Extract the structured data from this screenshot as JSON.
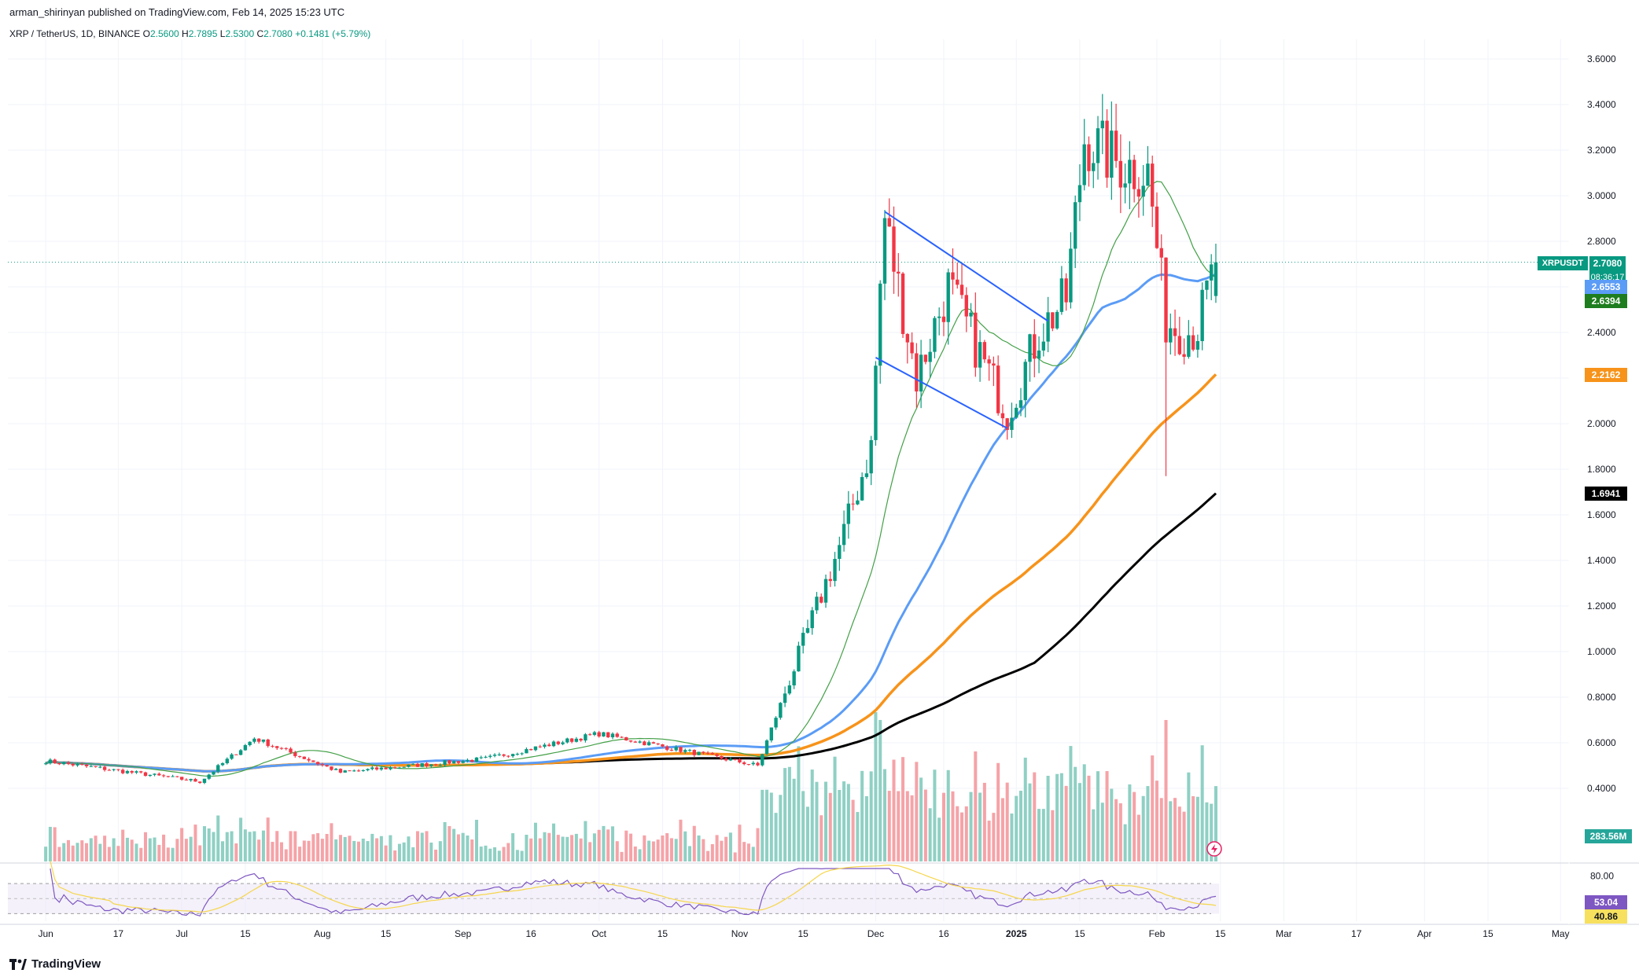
{
  "header": {
    "published": "arman_shirinyan published on TradingView.com, Feb 14, 2025 15:23 UTC",
    "symbol": "XRP / TetherUS, 1D, BINANCE",
    "open_key": "O",
    "open": "2.5600",
    "high_key": "H",
    "high": "2.7895",
    "low_key": "L",
    "low": "2.5300",
    "close_key": "C",
    "close": "2.7080",
    "change": "+0.1481 (+5.79%)"
  },
  "branding": {
    "logo_text": "TradingView"
  },
  "price_labels": {
    "symbol_tag": "XRPUSDT",
    "last_price": "2.7080",
    "countdown": "08:36:17",
    "ma20": "2.6553",
    "ma_short": "2.6394",
    "ma100": "2.2162",
    "ma200": "1.6941",
    "volume": "283.56M"
  },
  "rsi_labels": {
    "top": "80.00",
    "rsi": "53.04",
    "rsi_ma": "40.86"
  },
  "colors": {
    "up": "#089981",
    "down": "#f23645",
    "vol_up": "#8fd0c4",
    "vol_down": "#f5a3a8",
    "ma_fast": "#43a047",
    "ma20": "#5b9cf6",
    "ma100": "#f7931a",
    "ma200": "#000000",
    "trendline": "#2962ff",
    "rsi": "#7e57c2",
    "rsi_ma": "#f6d64c"
  },
  "chart_data": {
    "type": "candlestick",
    "symbol": "XRP / TetherUS",
    "timeframe": "1D",
    "exchange": "BINANCE",
    "x_ticks": [
      "Jun",
      "17",
      "Jul",
      "15",
      "Aug",
      "15",
      "Sep",
      "16",
      "Oct",
      "15",
      "Nov",
      "15",
      "Dec",
      "16",
      "2025",
      "15",
      "Feb",
      "15",
      "Mar",
      "17",
      "Apr",
      "15",
      "May"
    ],
    "y_ticks": [
      "0.4000",
      "0.6000",
      "0.8000",
      "1.0000",
      "1.2000",
      "1.4000",
      "1.6000",
      "1.8000",
      "2.0000",
      "2.2000",
      "2.4000",
      "2.6000",
      "2.8000",
      "3.0000",
      "3.2000",
      "3.4000",
      "3.6000"
    ],
    "ylim": [
      0.26,
      3.7
    ],
    "last_candle": {
      "date": "2025-02-14",
      "open": 2.56,
      "high": 2.7895,
      "low": 2.53,
      "close": 2.708,
      "change": 0.1481,
      "change_pct": 5.79
    },
    "key_points": [
      {
        "date": "2024-06-01",
        "price": 0.52
      },
      {
        "date": "2024-07-05",
        "price": 0.43
      },
      {
        "date": "2024-07-17",
        "price": 0.62
      },
      {
        "date": "2024-08-05",
        "price": 0.47
      },
      {
        "date": "2024-09-06",
        "price": 0.53
      },
      {
        "date": "2024-10-01",
        "price": 0.64
      },
      {
        "date": "2024-11-05",
        "price": 0.5
      },
      {
        "date": "2024-11-16",
        "price": 1.09
      },
      {
        "date": "2024-11-23",
        "price": 1.46
      },
      {
        "date": "2024-11-30",
        "price": 1.9
      },
      {
        "date": "2024-12-02",
        "price": 2.6
      },
      {
        "date": "2024-12-03",
        "price": 2.9
      },
      {
        "date": "2024-12-10",
        "price": 2.2
      },
      {
        "date": "2024-12-17",
        "price": 2.6
      },
      {
        "date": "2024-12-30",
        "price": 2.05
      },
      {
        "date": "2025-01-06",
        "price": 2.4
      },
      {
        "date": "2025-01-12",
        "price": 2.55
      },
      {
        "date": "2025-01-16",
        "price": 3.25
      },
      {
        "date": "2025-01-23",
        "price": 3.15
      },
      {
        "date": "2025-01-30",
        "price": 3.1
      },
      {
        "date": "2025-02-03",
        "price": 2.45
      },
      {
        "date": "2025-02-07",
        "price": 2.4
      },
      {
        "date": "2025-02-10",
        "price": 2.42
      },
      {
        "date": "2025-02-14",
        "price": 2.708
      }
    ],
    "moving_averages": [
      {
        "name": "MA fast",
        "last": 2.6394
      },
      {
        "name": "MA 20",
        "last": 2.6553
      },
      {
        "name": "MA 100",
        "last": 2.2162
      },
      {
        "name": "MA 200",
        "last": 1.6941
      }
    ],
    "rsi": {
      "last": 53.04,
      "ma_last": 40.86,
      "band": [
        30,
        70
      ]
    },
    "volume_last": "283.56M"
  }
}
